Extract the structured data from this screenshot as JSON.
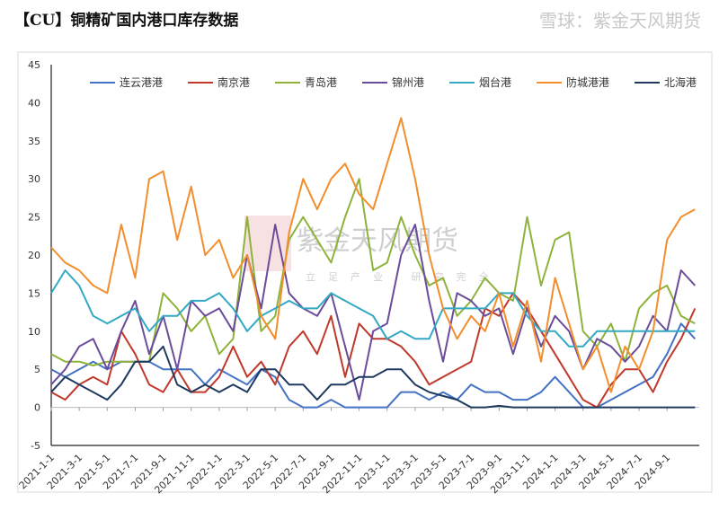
{
  "title": "【CU】铜精矿国内港口库存数据",
  "watermark": {
    "center": "紫金天风期货",
    "sub": "立足产业 研究完全",
    "footer": "雪球：紫金天风期货"
  },
  "chart_data": {
    "type": "line",
    "title": "【CU】铜精矿国内港口库存数据",
    "xlabel": "",
    "ylabel": "",
    "ylim": [
      -5,
      45
    ],
    "yticks": [
      -5,
      0,
      5,
      10,
      15,
      20,
      25,
      30,
      35,
      40,
      45
    ],
    "x_start": "2021-1",
    "x_step": "monthly",
    "xticks": [
      "2021-1-1",
      "2021-3-1",
      "2021-5-1",
      "2021-7-1",
      "2021-9-1",
      "2021-11-1",
      "2022-1-1",
      "2022-3-1",
      "2022-5-1",
      "2022-7-1",
      "2022-9-1",
      "2022-11-1",
      "2023-1-1",
      "2023-3-1",
      "2023-5-1",
      "2023-7-1",
      "2023-9-1",
      "2023-11-1",
      "2024-1-1",
      "2024-3-1",
      "2024-5-1",
      "2024-7-1",
      "2024-9-1"
    ],
    "legend_position": "top",
    "grid": false,
    "series": [
      {
        "name": "连云港港",
        "color": "#4472c4",
        "values": [
          5,
          4,
          5,
          6,
          5,
          6,
          6,
          6,
          5,
          5,
          5,
          3,
          5,
          4,
          3,
          5,
          4,
          1,
          0,
          0,
          1,
          0,
          0,
          0,
          0,
          2,
          2,
          1,
          2,
          1,
          3,
          2,
          2,
          1,
          1,
          2,
          4,
          2,
          0,
          0,
          1,
          2,
          3,
          4,
          7,
          11,
          9
        ]
      },
      {
        "name": "南京港",
        "color": "#c0392b",
        "values": [
          2,
          1,
          3,
          4,
          3,
          10,
          7,
          3,
          2,
          5,
          2,
          2,
          4,
          8,
          4,
          6,
          3,
          8,
          10,
          7,
          12,
          4,
          11,
          9,
          9,
          8,
          6,
          3,
          4,
          5,
          6,
          13,
          12,
          15,
          13,
          10,
          7,
          4,
          1,
          0,
          3,
          5,
          5,
          2,
          6,
          9,
          13
        ]
      },
      {
        "name": "青岛港",
        "color": "#8db33a",
        "values": [
          7,
          6,
          6,
          5.5,
          6,
          6,
          6,
          6,
          15,
          13,
          10,
          12,
          7,
          9,
          25,
          10,
          12,
          22,
          25,
          22,
          19,
          25,
          30,
          18,
          19,
          25,
          20,
          16,
          17,
          12,
          14,
          17,
          15,
          14,
          25,
          16,
          22,
          23,
          10,
          8,
          11,
          6,
          13,
          15,
          16,
          12,
          11
        ]
      },
      {
        "name": "锦州港",
        "color": "#6b4c9a",
        "values": [
          3,
          5,
          8,
          9,
          5,
          10,
          14,
          7,
          12,
          5,
          14,
          12,
          13,
          10,
          20,
          13,
          24,
          15,
          13,
          12,
          15,
          8,
          1,
          10,
          11,
          20,
          24,
          14,
          6,
          15,
          14,
          12,
          13,
          7,
          13,
          8,
          12,
          10,
          5,
          9,
          8,
          6,
          8,
          12,
          10,
          18,
          16
        ]
      },
      {
        "name": "烟台港",
        "color": "#33a9c4",
        "values": [
          15,
          18,
          16,
          12,
          11,
          12,
          13,
          10,
          12,
          12,
          14,
          14,
          15,
          13,
          10,
          12,
          13,
          14,
          13,
          13,
          15,
          14,
          13,
          12,
          9,
          10,
          9,
          9,
          13,
          13,
          13,
          13,
          15,
          15,
          12,
          10,
          10,
          8,
          8,
          10,
          10,
          10,
          10,
          10,
          10,
          10,
          10
        ]
      },
      {
        "name": "防城港港",
        "color": "#f28e2b",
        "values": [
          21,
          19,
          18,
          16,
          15,
          24,
          17,
          30,
          31,
          22,
          29,
          20,
          22,
          17,
          20,
          12,
          9,
          23,
          30,
          26,
          30,
          32,
          28,
          26,
          32,
          38,
          30,
          20,
          13,
          9,
          12,
          10,
          15,
          8,
          14,
          6,
          17,
          11,
          5,
          8,
          2,
          8,
          5,
          10,
          22,
          25,
          26
        ]
      },
      {
        "name": "北海港",
        "color": "#1f3a60",
        "values": [
          2,
          4,
          3,
          2,
          1,
          3,
          6,
          6,
          8,
          3,
          2,
          3,
          2,
          3,
          2,
          5,
          5,
          3,
          3,
          1,
          3,
          3,
          4,
          4,
          5,
          5,
          3,
          2,
          1.5,
          1,
          0,
          0,
          0.2,
          0,
          0,
          0,
          0,
          0,
          0,
          0,
          0,
          0,
          0,
          0,
          0,
          0,
          0
        ]
      }
    ]
  }
}
